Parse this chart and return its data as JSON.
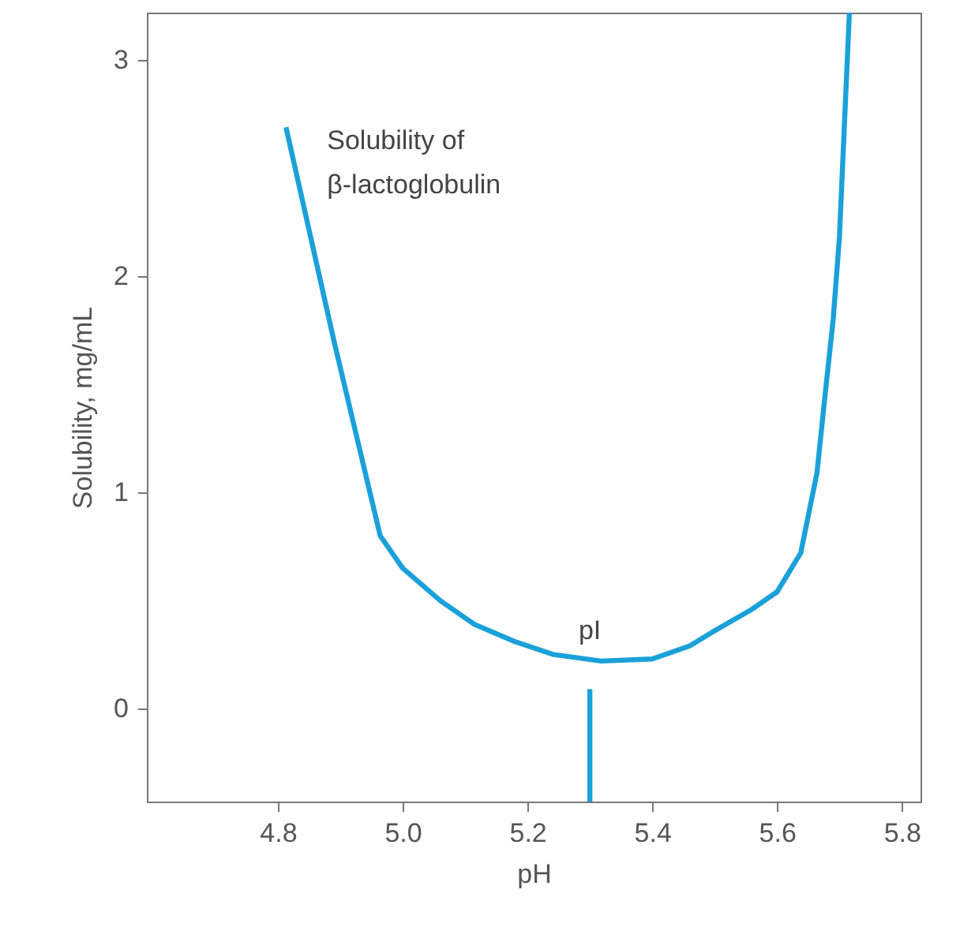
{
  "chart_data": {
    "type": "line",
    "xlabel": "pH",
    "ylabel": "Solubility, mg/mL",
    "xlim": [
      4.59,
      5.83
    ],
    "ylim": [
      -0.43,
      3.22
    ],
    "xticks": [
      4.8,
      {
        "value": 5,
        "label": "5.0"
      },
      5.2,
      5.4,
      5.6,
      5.8
    ],
    "yticks": [
      0,
      1,
      2,
      3
    ],
    "marker": "none",
    "line_style": "solid",
    "series": [
      {
        "color": "#1ba1d9",
        "x": [
          4.813,
          4.89,
          4.964,
          5.0,
          5.06,
          5.115,
          5.18,
          5.242,
          5.318,
          5.4,
          5.46,
          5.5,
          5.56,
          5.6,
          5.638,
          5.664,
          5.677,
          5.69,
          5.7,
          5.716
        ],
        "values": [
          2.69,
          1.7,
          0.8,
          0.65,
          0.5,
          0.39,
          0.31,
          0.25,
          0.22,
          0.23,
          0.29,
          0.36,
          0.46,
          0.54,
          0.72,
          1.09,
          1.45,
          1.8,
          2.18,
          3.22
        ]
      },
      {
        "color": "#1ba1d9",
        "x": [
          5.3,
          5.3
        ],
        "values": [
          -0.43,
          0.09
        ]
      }
    ],
    "annotations": [
      "Solubility of\nβ-lactoglobulin",
      "pI"
    ]
  }
}
